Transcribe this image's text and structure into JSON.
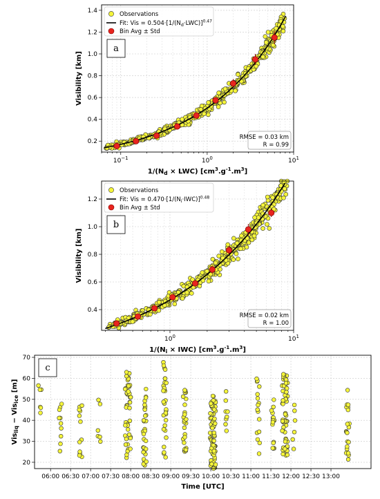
{
  "chart_data": [
    {
      "type": "scatter",
      "panel_label": "a",
      "xlabel": "1/(N",
      "xlabel_sub": "d",
      "xlabel_rest": " × LWC) [cm",
      "xlabel_unit": "3",
      "xlabel_mid": ".g",
      "xlabel_unit2": "-1",
      "xlabel_end": ".m",
      "xlabel_unit3": "3",
      "xlabel_close": "]",
      "ylabel": "Visibility [km]",
      "xscale": "log",
      "xlim": [
        0.06,
        10
      ],
      "ylim": [
        0.1,
        1.45
      ],
      "yticks": [
        0.2,
        0.4,
        0.6,
        0.8,
        1.0,
        1.2,
        1.4
      ],
      "ytick_labels": [
        "0.2",
        "0.4",
        "0.6",
        "0.8",
        "1.0",
        "1.2",
        "1.4"
      ],
      "xticks": [
        0.1,
        1,
        10
      ],
      "xtick_base": [
        "10",
        "10",
        "10"
      ],
      "xtick_exp": [
        "−1",
        "0",
        "1"
      ],
      "grid": true,
      "legend_position": "top-left",
      "legend": [
        {
          "label": "Observations",
          "marker": "yellow-circle"
        },
        {
          "label": "Fit: Vis = 0.504·[1/(N",
          "sub": "d",
          "rest": "·LWC)]",
          "sup": "0.47",
          "marker": "black-line"
        },
        {
          "label": "Bin Avg ± Std",
          "marker": "red-circle"
        }
      ],
      "fit": {
        "a": 0.504,
        "b": 0.47
      },
      "bin_avg": {
        "x": [
          0.09,
          0.15,
          0.26,
          0.45,
          0.75,
          1.25,
          2.0,
          3.6,
          6.0
        ],
        "y": [
          0.155,
          0.2,
          0.25,
          0.335,
          0.435,
          0.575,
          0.73,
          0.95,
          1.15
        ],
        "std": [
          0.01,
          0.01,
          0.015,
          0.02,
          0.025,
          0.03,
          0.04,
          0.05,
          0.06
        ]
      },
      "stats": [
        "RMSE = 0.03 km",
        "R = 0.99"
      ],
      "colors": {
        "observations": "#f5f53a",
        "fit": "#000000",
        "bins": "#e8241e"
      }
    },
    {
      "type": "scatter",
      "panel_label": "b",
      "xlabel": "1/(N",
      "xlabel_sub": "i",
      "xlabel_rest": " × IWC) [cm",
      "xlabel_unit": "3",
      "xlabel_mid": ".g",
      "xlabel_unit2": "-1",
      "xlabel_end": ".m",
      "xlabel_unit3": "3",
      "xlabel_close": "]",
      "ylabel": "Visibility [km]",
      "xscale": "log",
      "xlim": [
        0.28,
        10
      ],
      "ylim": [
        0.25,
        1.33
      ],
      "yticks": [
        0.4,
        0.6,
        0.8,
        1.0,
        1.2
      ],
      "ytick_labels": [
        "0.4",
        "0.6",
        "0.8",
        "1.0",
        "1.2"
      ],
      "xticks": [
        1,
        10
      ],
      "xtick_base": [
        "10",
        "10"
      ],
      "xtick_exp": [
        "0",
        "1"
      ],
      "grid": true,
      "legend_position": "top-left",
      "legend": [
        {
          "label": "Observations",
          "marker": "yellow-circle"
        },
        {
          "label": "Fit: Vis = 0.470·[1/(N",
          "sub": "i",
          "rest": "·IWC)]",
          "sup": "0.48",
          "marker": "black-line"
        },
        {
          "label": "Bin Avg ± Std",
          "marker": "red-circle"
        }
      ],
      "fit": {
        "a": 0.47,
        "b": 0.48
      },
      "bin_avg": {
        "x": [
          0.37,
          0.55,
          0.75,
          1.05,
          1.6,
          2.2,
          3.0,
          4.3,
          6.6
        ],
        "y": [
          0.3,
          0.35,
          0.41,
          0.49,
          0.59,
          0.69,
          0.83,
          0.98,
          1.1
        ],
        "std": [
          0.01,
          0.01,
          0.015,
          0.02,
          0.02,
          0.03,
          0.03,
          0.04,
          0.03
        ]
      },
      "stats": [
        "RMSE = 0.02 km",
        "R = 1.00"
      ],
      "colors": {
        "observations": "#f5f53a",
        "fit": "#000000",
        "bins": "#e8241e"
      }
    },
    {
      "type": "scatter",
      "panel_label": "c",
      "xlabel": "Time [UTC]",
      "ylabel": "Vis",
      "ylabel_sub1": "liq",
      "ylabel_mid": " − Vis",
      "ylabel_sub2": "ice",
      "ylabel_end": " [m]",
      "xlim": [
        5.6,
        14.0
      ],
      "ylim": [
        17,
        71
      ],
      "xticks": [
        6.0,
        6.5,
        7.0,
        7.5,
        8.0,
        8.5,
        9.0,
        9.5,
        10.0,
        10.5,
        11.0,
        11.5,
        12.0,
        12.5,
        13.0
      ],
      "xtick_labels": [
        "06:00",
        "06:30",
        "07:00",
        "07:30",
        "08:00",
        "08:30",
        "09:00",
        "09:30",
        "10:00",
        "10:30",
        "11:00",
        "11:30",
        "12:00",
        "12:30",
        "13:00"
      ],
      "yticks": [
        20,
        30,
        40,
        50,
        60,
        70
      ],
      "ytick_labels": [
        "20",
        "30",
        "40",
        "50",
        "60",
        "70"
      ],
      "grid": true,
      "clusters": [
        {
          "t": 5.73,
          "ymin": 37,
          "ymax": 57,
          "n": 6
        },
        {
          "t": 6.25,
          "ymin": 21,
          "ymax": 49,
          "n": 10
        },
        {
          "t": 6.75,
          "ymin": 21,
          "ymax": 50,
          "n": 12
        },
        {
          "t": 7.22,
          "ymin": 27,
          "ymax": 51,
          "n": 6
        },
        {
          "t": 7.93,
          "ymin": 21,
          "ymax": 64,
          "n": 45
        },
        {
          "t": 8.35,
          "ymin": 17,
          "ymax": 55,
          "n": 30
        },
        {
          "t": 8.85,
          "ymin": 22,
          "ymax": 69,
          "n": 30
        },
        {
          "t": 9.35,
          "ymin": 25,
          "ymax": 55,
          "n": 25
        },
        {
          "t": 10.05,
          "ymin": 17,
          "ymax": 52,
          "n": 80
        },
        {
          "t": 10.38,
          "ymin": 31,
          "ymax": 54,
          "n": 8
        },
        {
          "t": 11.18,
          "ymin": 19,
          "ymax": 63,
          "n": 16
        },
        {
          "t": 11.55,
          "ymin": 26,
          "ymax": 50,
          "n": 16
        },
        {
          "t": 11.85,
          "ymin": 23,
          "ymax": 62,
          "n": 60
        },
        {
          "t": 12.08,
          "ymin": 26,
          "ymax": 59,
          "n": 6
        },
        {
          "t": 13.42,
          "ymin": 19,
          "ymax": 55,
          "n": 20
        }
      ],
      "colors": {
        "observations": "#f5f53a"
      }
    }
  ]
}
